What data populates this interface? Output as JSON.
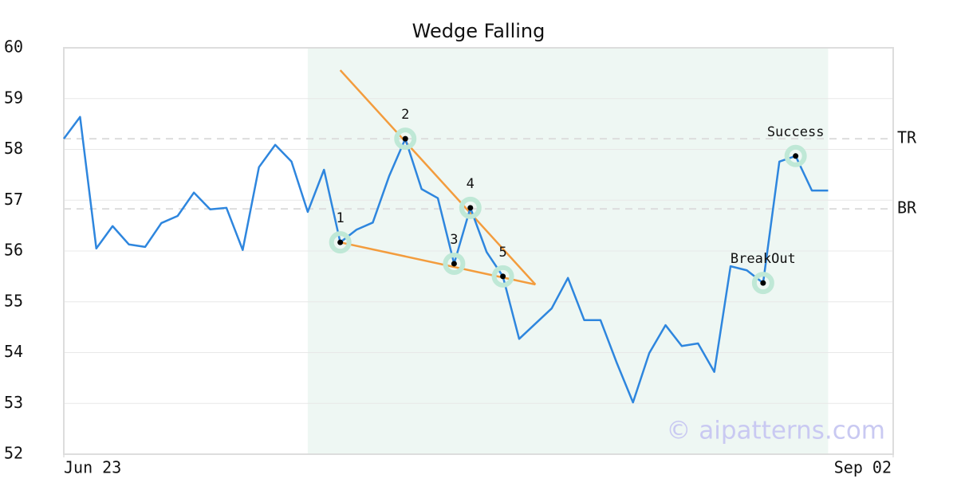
{
  "chart_data": {
    "type": "line",
    "title": "Wedge Falling",
    "watermark": "© aipatterns.com",
    "color": "#2e86de",
    "values": [
      58.21,
      58.64,
      56.05,
      56.49,
      56.13,
      56.08,
      56.55,
      56.69,
      57.15,
      56.82,
      56.85,
      56.02,
      57.65,
      58.09,
      57.76,
      56.77,
      57.6,
      56.17,
      56.42,
      56.56,
      57.47,
      58.21,
      57.22,
      57.04,
      55.75,
      56.85,
      55.98,
      55.5,
      54.27,
      54.57,
      54.87,
      55.47,
      54.64,
      54.64,
      53.8,
      53.02,
      53.99,
      54.54,
      54.13,
      54.18,
      53.62,
      55.7,
      55.62,
      55.37,
      57.76,
      57.87,
      57.19,
      57.19
    ],
    "xlim": [
      0,
      51
    ],
    "xticks": [
      {
        "value": 0,
        "label": "Jun 23"
      },
      {
        "value": 51,
        "label": "Sep 02"
      }
    ],
    "ylim": [
      52,
      60
    ],
    "yticks": [
      52,
      53,
      54,
      55,
      56,
      57,
      58,
      59,
      60
    ],
    "grid": true,
    "region": {
      "x": [
        15,
        47
      ],
      "color": "#eef7f3"
    },
    "trend_lines": {
      "color": "#f39c3d",
      "lines": [
        {
          "x": [
            17,
            29
          ],
          "y": [
            59.56,
            55.34
          ]
        },
        {
          "x": [
            17,
            29
          ],
          "y": [
            56.17,
            55.34
          ]
        }
      ]
    },
    "levels": [
      {
        "label": "TR",
        "value": 58.21
      },
      {
        "label": "BR",
        "value": 56.83
      }
    ],
    "markers": [
      {
        "label": "1",
        "x": 17,
        "y": 56.17
      },
      {
        "label": "2",
        "x": 21,
        "y": 58.21
      },
      {
        "label": "3",
        "x": 24,
        "y": 55.75
      },
      {
        "label": "4",
        "x": 25,
        "y": 56.85
      },
      {
        "label": "5",
        "x": 27,
        "y": 55.5
      },
      {
        "label": "BreakOut",
        "x": 43,
        "y": 55.37
      },
      {
        "label": "Success",
        "x": 45,
        "y": 57.87
      }
    ]
  }
}
